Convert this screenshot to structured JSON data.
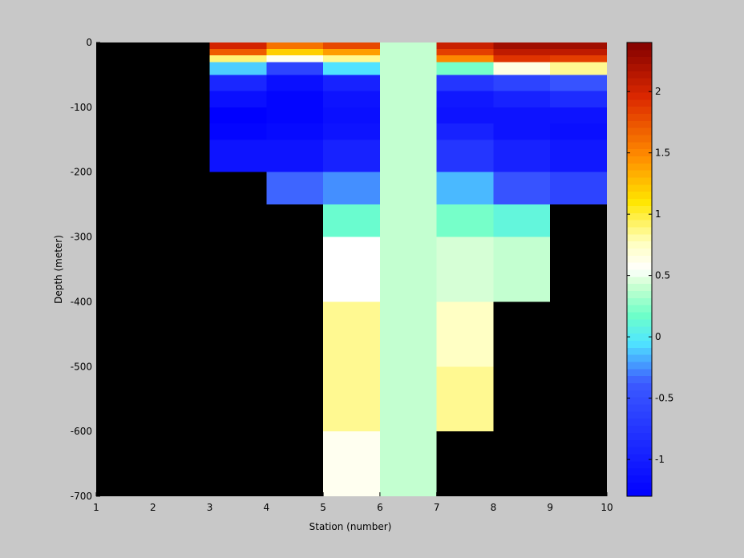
{
  "chart_data": {
    "type": "heatmap",
    "title": "",
    "xlabel": "Station (number)",
    "ylabel": "Depth (meter)",
    "xlim": [
      1,
      10
    ],
    "ylim": [
      -700,
      0
    ],
    "xticks": [
      "1",
      "2",
      "3",
      "4",
      "5",
      "6",
      "7",
      "8",
      "9",
      "10"
    ],
    "yticks": [
      "0",
      "-100",
      "-200",
      "-300",
      "-400",
      "-500",
      "-600",
      "-700"
    ],
    "background_color": "#000000",
    "colorbar": {
      "colormap": "jet",
      "clim": [
        -1.3,
        2.4
      ],
      "ticks": [
        "-1",
        "-0.5",
        "0",
        "0.5",
        "1",
        "1.5",
        "2"
      ]
    },
    "cells": [
      {
        "x": [
          3,
          4
        ],
        "depth": [
          0,
          -10
        ],
        "value": 2.0
      },
      {
        "x": [
          3,
          4
        ],
        "depth": [
          -10,
          -20
        ],
        "value": 1.7
      },
      {
        "x": [
          3,
          4
        ],
        "depth": [
          -20,
          -30
        ],
        "value": 0.9
      },
      {
        "x": [
          3,
          4
        ],
        "depth": [
          -30,
          -50
        ],
        "value": -0.1
      },
      {
        "x": [
          3,
          4
        ],
        "depth": [
          -50,
          -75
        ],
        "value": -0.9
      },
      {
        "x": [
          3,
          4
        ],
        "depth": [
          -75,
          -100
        ],
        "value": -1.15
      },
      {
        "x": [
          3,
          4
        ],
        "depth": [
          -100,
          -125
        ],
        "value": -1.3
      },
      {
        "x": [
          3,
          4
        ],
        "depth": [
          -125,
          -150
        ],
        "value": -1.25
      },
      {
        "x": [
          3,
          4
        ],
        "depth": [
          -150,
          -200
        ],
        "value": -1.1
      },
      {
        "x": [
          4,
          5
        ],
        "depth": [
          0,
          -10
        ],
        "value": 1.6
      },
      {
        "x": [
          4,
          5
        ],
        "depth": [
          -10,
          -20
        ],
        "value": 1.2
      },
      {
        "x": [
          4,
          5
        ],
        "depth": [
          -20,
          -30
        ],
        "value": 0.6
      },
      {
        "x": [
          4,
          5
        ],
        "depth": [
          -30,
          -50
        ],
        "value": -0.6
      },
      {
        "x": [
          4,
          5
        ],
        "depth": [
          -50,
          -75
        ],
        "value": -1.15
      },
      {
        "x": [
          4,
          5
        ],
        "depth": [
          -75,
          -100
        ],
        "value": -1.25
      },
      {
        "x": [
          4,
          5
        ],
        "depth": [
          -100,
          -125
        ],
        "value": -1.25
      },
      {
        "x": [
          4,
          5
        ],
        "depth": [
          -125,
          -150
        ],
        "value": -1.2
      },
      {
        "x": [
          4,
          5
        ],
        "depth": [
          -150,
          -200
        ],
        "value": -1.1
      },
      {
        "x": [
          4,
          5
        ],
        "depth": [
          -200,
          -250
        ],
        "value": -0.35
      },
      {
        "x": [
          5,
          6
        ],
        "depth": [
          0,
          -10
        ],
        "value": 1.8
      },
      {
        "x": [
          5,
          6
        ],
        "depth": [
          -10,
          -20
        ],
        "value": 1.4
      },
      {
        "x": [
          5,
          6
        ],
        "depth": [
          -20,
          -30
        ],
        "value": 0.85
      },
      {
        "x": [
          5,
          6
        ],
        "depth": [
          -30,
          -50
        ],
        "value": -0.05
      },
      {
        "x": [
          5,
          6
        ],
        "depth": [
          -50,
          -75
        ],
        "value": -0.95
      },
      {
        "x": [
          5,
          6
        ],
        "depth": [
          -75,
          -100
        ],
        "value": -1.1
      },
      {
        "x": [
          5,
          6
        ],
        "depth": [
          -100,
          -125
        ],
        "value": -1.15
      },
      {
        "x": [
          5,
          6
        ],
        "depth": [
          -125,
          -150
        ],
        "value": -1.1
      },
      {
        "x": [
          5,
          6
        ],
        "depth": [
          -150,
          -200
        ],
        "value": -0.95
      },
      {
        "x": [
          5,
          6
        ],
        "depth": [
          -200,
          -250
        ],
        "value": -0.25
      },
      {
        "x": [
          5,
          6
        ],
        "depth": [
          -250,
          -300
        ],
        "value": 0.15
      },
      {
        "x": [
          5,
          6
        ],
        "depth": [
          -300,
          -400
        ],
        "value": 0.55
      },
      {
        "x": [
          5,
          6
        ],
        "depth": [
          -400,
          -500
        ],
        "value": 0.85
      },
      {
        "x": [
          5,
          6
        ],
        "depth": [
          -500,
          -600
        ],
        "value": 0.85
      },
      {
        "x": [
          5,
          6
        ],
        "depth": [
          -600,
          -700
        ],
        "value": 0.6
      },
      {
        "x": [
          6,
          7
        ],
        "depth": [
          0,
          -700
        ],
        "value": 0.4
      },
      {
        "x": [
          7,
          8
        ],
        "depth": [
          0,
          -10
        ],
        "value": 2.05
      },
      {
        "x": [
          7,
          8
        ],
        "depth": [
          -10,
          -20
        ],
        "value": 1.85
      },
      {
        "x": [
          7,
          8
        ],
        "depth": [
          -20,
          -30
        ],
        "value": 1.5
      },
      {
        "x": [
          7,
          8
        ],
        "depth": [
          -30,
          -50
        ],
        "value": 0.2
      },
      {
        "x": [
          7,
          8
        ],
        "depth": [
          -50,
          -75
        ],
        "value": -0.75
      },
      {
        "x": [
          7,
          8
        ],
        "depth": [
          -75,
          -100
        ],
        "value": -1.05
      },
      {
        "x": [
          7,
          8
        ],
        "depth": [
          -100,
          -125
        ],
        "value": -1.1
      },
      {
        "x": [
          7,
          8
        ],
        "depth": [
          -125,
          -150
        ],
        "value": -0.95
      },
      {
        "x": [
          7,
          8
        ],
        "depth": [
          -150,
          -200
        ],
        "value": -0.75
      },
      {
        "x": [
          7,
          8
        ],
        "depth": [
          -200,
          -250
        ],
        "value": -0.15
      },
      {
        "x": [
          7,
          8
        ],
        "depth": [
          -250,
          -300
        ],
        "value": 0.2
      },
      {
        "x": [
          7,
          8
        ],
        "depth": [
          -300,
          -400
        ],
        "value": 0.45
      },
      {
        "x": [
          7,
          8
        ],
        "depth": [
          -400,
          -500
        ],
        "value": 0.75
      },
      {
        "x": [
          7,
          8
        ],
        "depth": [
          -500,
          -600
        ],
        "value": 0.85
      },
      {
        "x": [
          8,
          9
        ],
        "depth": [
          0,
          -10
        ],
        "value": 2.25
      },
      {
        "x": [
          8,
          9
        ],
        "depth": [
          -10,
          -20
        ],
        "value": 2.1
      },
      {
        "x": [
          8,
          9
        ],
        "depth": [
          -20,
          -30
        ],
        "value": 1.9
      },
      {
        "x": [
          8,
          9
        ],
        "depth": [
          -30,
          -50
        ],
        "value": 0.65
      },
      {
        "x": [
          8,
          9
        ],
        "depth": [
          -50,
          -75
        ],
        "value": -0.6
      },
      {
        "x": [
          8,
          9
        ],
        "depth": [
          -75,
          -100
        ],
        "value": -0.95
      },
      {
        "x": [
          8,
          9
        ],
        "depth": [
          -100,
          -125
        ],
        "value": -1.1
      },
      {
        "x": [
          8,
          9
        ],
        "depth": [
          -125,
          -150
        ],
        "value": -1.1
      },
      {
        "x": [
          8,
          9
        ],
        "depth": [
          -150,
          -200
        ],
        "value": -0.95
      },
      {
        "x": [
          8,
          9
        ],
        "depth": [
          -200,
          -250
        ],
        "value": -0.45
      },
      {
        "x": [
          8,
          9
        ],
        "depth": [
          -250,
          -300
        ],
        "value": 0.1
      },
      {
        "x": [
          8,
          9
        ],
        "depth": [
          -300,
          -400
        ],
        "value": 0.4
      },
      {
        "x": [
          9,
          10
        ],
        "depth": [
          0,
          -10
        ],
        "value": 2.25
      },
      {
        "x": [
          9,
          10
        ],
        "depth": [
          -10,
          -20
        ],
        "value": 2.1
      },
      {
        "x": [
          9,
          10
        ],
        "depth": [
          -20,
          -30
        ],
        "value": 1.85
      },
      {
        "x": [
          9,
          10
        ],
        "depth": [
          -30,
          -50
        ],
        "value": 0.85
      },
      {
        "x": [
          9,
          10
        ],
        "depth": [
          -50,
          -75
        ],
        "value": -0.45
      },
      {
        "x": [
          9,
          10
        ],
        "depth": [
          -75,
          -100
        ],
        "value": -0.85
      },
      {
        "x": [
          9,
          10
        ],
        "depth": [
          -100,
          -125
        ],
        "value": -1.1
      },
      {
        "x": [
          9,
          10
        ],
        "depth": [
          -125,
          -150
        ],
        "value": -1.15
      },
      {
        "x": [
          9,
          10
        ],
        "depth": [
          -150,
          -200
        ],
        "value": -1.05
      },
      {
        "x": [
          9,
          10
        ],
        "depth": [
          -200,
          -250
        ],
        "value": -0.6
      }
    ]
  }
}
